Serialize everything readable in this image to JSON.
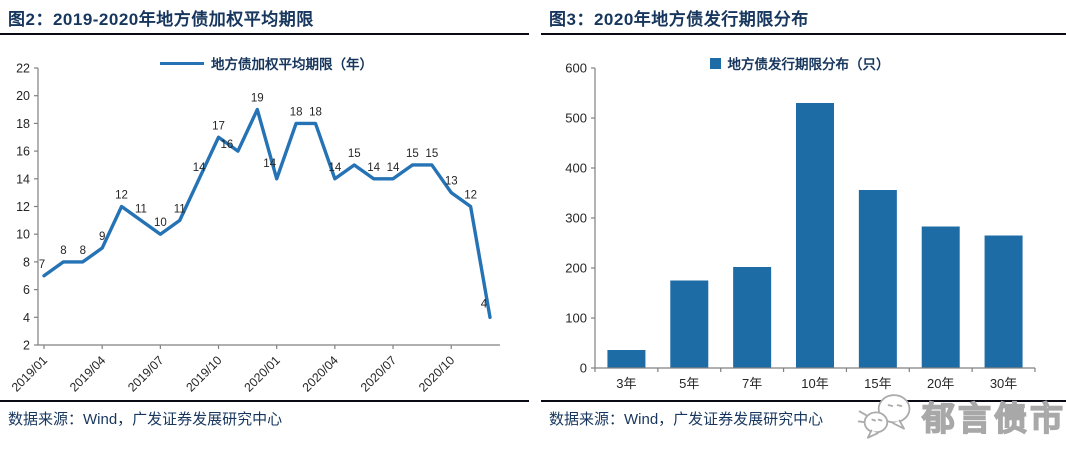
{
  "panels": [
    {
      "title": "图2：2019-2020年地方债加权平均期限",
      "source": "数据来源：Wind，广发证券发展研究中心"
    },
    {
      "title": "图3：2020年地方债发行期限分布",
      "source": "数据来源：Wind，广发证券发展研究中心"
    }
  ],
  "chart_data": [
    {
      "type": "line",
      "title": "图2：2019-2020年地方债加权平均期限",
      "legend": [
        "地方债加权平均期限（年）"
      ],
      "x": [
        "2019/01",
        "2019/02",
        "2019/03",
        "2019/04",
        "2019/05",
        "2019/06",
        "2019/07",
        "2019/08",
        "2019/09",
        "2019/10",
        "2019/11",
        "2019/12",
        "2020/01",
        "2020/02",
        "2020/03",
        "2020/04",
        "2020/05",
        "2020/06",
        "2020/07",
        "2020/08",
        "2020/09",
        "2020/10",
        "2020/11",
        "2020/12"
      ],
      "values": [
        7,
        8,
        8,
        9,
        12,
        11,
        10,
        11,
        14,
        17,
        16,
        19,
        14,
        18,
        18,
        14,
        15,
        14,
        14,
        15,
        15,
        13,
        12,
        4
      ],
      "x_tick_labels": [
        "2019/01",
        "2019/04",
        "2019/07",
        "2019/10",
        "2020/01",
        "2020/04",
        "2020/07",
        "2020/10"
      ],
      "x_tick_every": 3,
      "ylim": [
        2,
        22
      ],
      "ytick_step": 2,
      "data_labels": true,
      "line_color": "#2573B5",
      "grid": false,
      "legend_position": "top-center"
    },
    {
      "type": "bar",
      "title": "图3：2020年地方债发行期限分布",
      "legend": [
        "地方债发行期限分布（只）"
      ],
      "categories": [
        "3年",
        "5年",
        "7年",
        "10年",
        "15年",
        "20年",
        "30年"
      ],
      "values": [
        36,
        175,
        202,
        530,
        356,
        283,
        265
      ],
      "ylim": [
        0,
        600
      ],
      "ytick_step": 100,
      "data_labels": false,
      "bar_color": "#1E6CA6",
      "grid": false,
      "legend_position": "top-center"
    }
  ],
  "watermark": {
    "brand": "郁言债市",
    "icon": "chat-bubbles-icon"
  },
  "colors": {
    "title_navy": "#17365D",
    "line_blue": "#2573B5",
    "bar_blue": "#1E6CA6",
    "axis_gray": "#808080",
    "tick_label": "#262626",
    "rule_black": "#0a0a14",
    "watermark_gray": "#a8a8a8"
  }
}
